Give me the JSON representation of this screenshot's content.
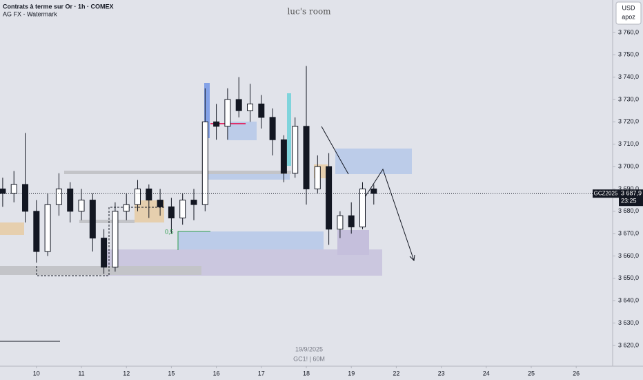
{
  "chart_data": {
    "type": "candlestick",
    "title": "Contrats à terme sur Or · 1h · COMEX",
    "subtitle": "AG FX - Watermark",
    "watermark": "luc's room",
    "currency": "USD",
    "currency_note": "apoz",
    "date_label": "19/9/2025",
    "footer": "GC1! | 60M",
    "annotation": "0,5",
    "symbol": "GCZ2025",
    "countdown": "23:25",
    "last_price": {
      "value": 3687.9,
      "label": "3 687,9"
    },
    "up_color": "#ffffff",
    "down_color": "#131722",
    "x": [
      -0.75,
      -0.5,
      -0.25,
      0,
      0.25,
      0.5,
      0.75,
      1,
      1.25,
      1.5,
      1.75,
      2,
      2.25,
      2.5,
      2.75,
      3,
      3.25,
      3.5,
      3.75,
      4,
      4.25,
      4.5,
      4.75,
      5,
      5.25,
      5.5,
      5.75,
      6,
      6.25,
      6.5,
      6.75,
      7,
      7.25,
      7.5
    ],
    "open": [
      3690,
      3688,
      3692,
      3680,
      3662,
      3683,
      3690,
      3680,
      3685,
      3668,
      3655,
      3680,
      3683,
      3690,
      3685,
      3682,
      3677,
      3685,
      3683,
      3720,
      3718,
      3730,
      3725,
      3728,
      3722,
      3712,
      3697,
      3718,
      3690,
      3700,
      3672,
      3678,
      3673,
      3690
    ],
    "high": [
      3695,
      3698,
      3715,
      3685,
      3688,
      3697,
      3693,
      3690,
      3688,
      3672,
      3684,
      3688,
      3694,
      3692,
      3690,
      3686,
      3688,
      3690,
      3735,
      3728,
      3735,
      3740,
      3737,
      3732,
      3726,
      3714,
      3722,
      3745,
      3705,
      3706,
      3680,
      3684,
      3693,
      3692
    ],
    "low": [
      3682,
      3684,
      3675,
      3657,
      3660,
      3678,
      3675,
      3676,
      3662,
      3652,
      3653,
      3676,
      3680,
      3677,
      3678,
      3670,
      3674,
      3676,
      3680,
      3712,
      3712,
      3722,
      3720,
      3717,
      3705,
      3693,
      3695,
      3683,
      3688,
      3665,
      3668,
      3670,
      3672,
      3683
    ],
    "close": [
      3688,
      3692,
      3680,
      3662,
      3683,
      3690,
      3680,
      3685,
      3668,
      3655,
      3680,
      3683,
      3690,
      3685,
      3682,
      3677,
      3685,
      3683,
      3720,
      3718,
      3730,
      3725,
      3728,
      3722,
      3712,
      3697,
      3718,
      3690,
      3700,
      3672,
      3678,
      3673,
      3690,
      3688
    ],
    "xlim": [
      -0.81,
      12.81
    ],
    "xticks": [
      {
        "value": 0,
        "label": "10"
      },
      {
        "value": 1,
        "label": "11"
      },
      {
        "value": 2,
        "label": "12"
      },
      {
        "value": 3,
        "label": "15"
      },
      {
        "value": 4,
        "label": "16"
      },
      {
        "value": 5,
        "label": "17"
      },
      {
        "value": 6,
        "label": "18"
      },
      {
        "value": 7,
        "label": "19"
      },
      {
        "value": 8,
        "label": "22"
      },
      {
        "value": 9,
        "label": "23"
      },
      {
        "value": 10,
        "label": "24"
      },
      {
        "value": 11,
        "label": "25"
      },
      {
        "value": 12,
        "label": "26"
      }
    ],
    "ylim": [
      3613.8,
      3774.5
    ],
    "yticks": [
      {
        "value": 3620,
        "label": "3 620,0"
      },
      {
        "value": 3630,
        "label": "3 630,0"
      },
      {
        "value": 3640,
        "label": "3 640,0"
      },
      {
        "value": 3650,
        "label": "3 650,0"
      },
      {
        "value": 3660,
        "label": "3 660,0"
      },
      {
        "value": 3670,
        "label": "3 670,0"
      },
      {
        "value": 3680,
        "label": "3 680,0"
      },
      {
        "value": 3690,
        "label": "3 690,0"
      },
      {
        "value": 3700,
        "label": "3 700,0"
      },
      {
        "value": 3710,
        "label": "3 710,0"
      },
      {
        "value": 3720,
        "label": "3 720,0"
      },
      {
        "value": 3730,
        "label": "3 730,0"
      },
      {
        "value": 3740,
        "label": "3 740,0"
      },
      {
        "value": 3750,
        "label": "3 750,0"
      },
      {
        "value": 3760,
        "label": "3 760,0"
      }
    ]
  }
}
